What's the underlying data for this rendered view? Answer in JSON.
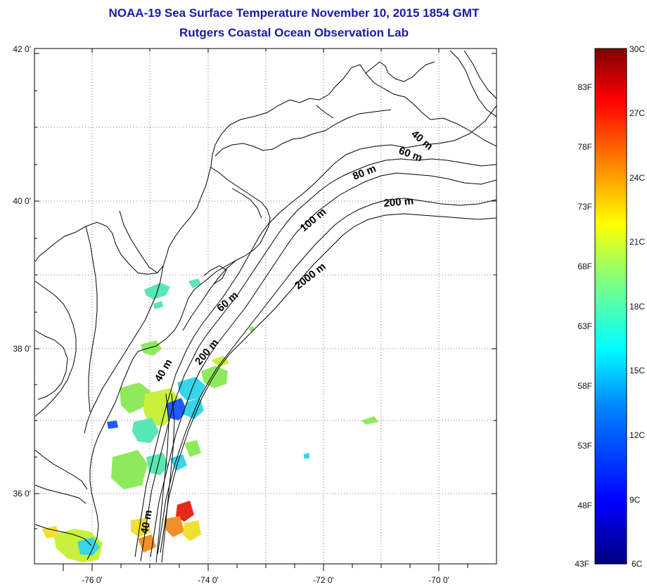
{
  "header": {
    "title": "NOAA-19 Sea Surface Temperature November 10, 2015 1854 GMT",
    "subtitle": "Rutgers Coastal Ocean Observation Lab"
  },
  "axes": {
    "lat_labels": [
      "42 0'",
      "40 0'",
      "38 0'",
      "36 0'"
    ],
    "lon_labels": [
      "-76 0'",
      "-74 0'",
      "-72 0'",
      "-70 0'"
    ]
  },
  "isobaths": [
    "40 m",
    "60 m",
    "80 m",
    "200 m",
    "100 m",
    "2000 m",
    "60 m",
    "200 m",
    "40 m",
    "40 m"
  ],
  "colorbar": {
    "celsius": [
      "30C",
      "27C",
      "24C",
      "21C",
      "18C",
      "15C",
      "12C",
      "9C",
      "6C"
    ],
    "fahrenheit": [
      "83F",
      "78F",
      "73F",
      "68F",
      "63F",
      "58F",
      "53F",
      "48F",
      "43F"
    ],
    "colors": [
      "#000080",
      "#0000ff",
      "#0080ff",
      "#00ffff",
      "#80ff80",
      "#ffff00",
      "#ff8000",
      "#ff0000",
      "#800000"
    ]
  },
  "sst_colors": {
    "cool": "#1e5cff",
    "cyan": "#38d4e8",
    "aqua": "#5ae6b4",
    "green": "#8eea5a",
    "yellowgreen": "#c8f03c",
    "yellow": "#f0e030",
    "orange": "#f09028",
    "red": "#e82818"
  }
}
